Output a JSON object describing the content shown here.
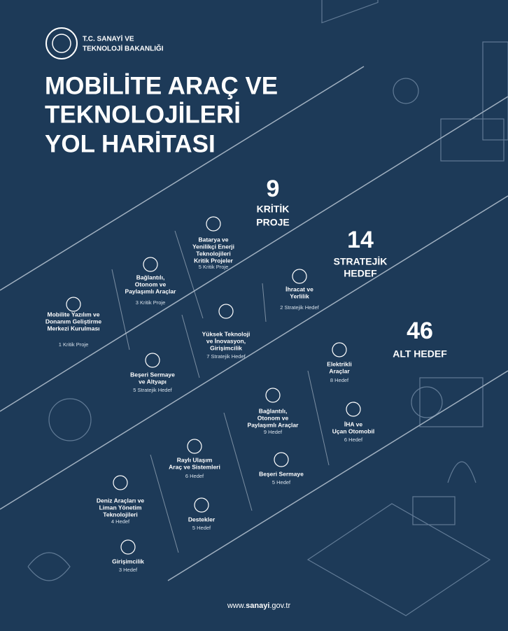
{
  "header": {
    "ministry": [
      "T.C. SANAYİ VE",
      "TEKNOLOJİ BAKANLIĞI"
    ],
    "title": [
      "MOBİLİTE ARAÇ VE",
      "TEKNOLOJİLERİ",
      "YOL HARİTASI"
    ]
  },
  "summary": [
    {
      "number": "9",
      "label": [
        "KRİTİK",
        "PROJE"
      ]
    },
    {
      "number": "14",
      "label": [
        "STRATEJİK",
        "HEDEF"
      ]
    },
    {
      "number": "46",
      "label": [
        "ALT HEDEF"
      ]
    }
  ],
  "items": [
    {
      "label": [
        "Mobilite Yazılım ve",
        "Donanım Geliştirme",
        "Merkezi Kurulması"
      ],
      "count": "1 Kritik Proje"
    },
    {
      "label": [
        "Bağlantılı,",
        "Otonom ve",
        "Paylaşımlı Araçlar"
      ],
      "count": "3 Kritik Proje"
    },
    {
      "label": [
        "Batarya ve",
        "Yenilikçi Enerji",
        "Teknolojileri",
        "Kritik Projeler"
      ],
      "count": "5 Kritik Proje"
    },
    {
      "label": [
        "İhracat ve",
        "Yerlilik"
      ],
      "count": "2 Stratejik Hedef"
    },
    {
      "label": [
        "Yüksek Teknoloji",
        "ve İnovasyon,",
        "Girişimcilik"
      ],
      "count": "7 Stratejik Hedef"
    },
    {
      "label": [
        "Beşeri Sermaye",
        "ve Altyapı"
      ],
      "count": "5 Stratejik Hedef"
    },
    {
      "label": [
        "Elektrikli",
        "Araçlar"
      ],
      "count": "8 Hedef"
    },
    {
      "label": [
        "Bağlantılı,",
        "Otonom ve",
        "Paylaşımlı Araçlar"
      ],
      "count": "9 Hedef"
    },
    {
      "label": [
        "İHA ve",
        "Uçan Otomobil"
      ],
      "count": "6 Hedef"
    },
    {
      "label": [
        "Raylı Ulaşım",
        "Araç ve Sistemleri"
      ],
      "count": "6 Hedef"
    },
    {
      "label": [
        "Beşeri Sermaye"
      ],
      "count": "5 Hedef"
    },
    {
      "label": [
        "Deniz Araçları ve",
        "Liman Yönetim",
        "Teknolojileri"
      ],
      "count": "4 Hedef"
    },
    {
      "label": [
        "Destekler"
      ],
      "count": "5 Hedef"
    },
    {
      "label": [
        "Girişimcilik"
      ],
      "count": "3 Hedef"
    }
  ],
  "footer": [
    "www.",
    "sanayi",
    ".gov.tr"
  ]
}
